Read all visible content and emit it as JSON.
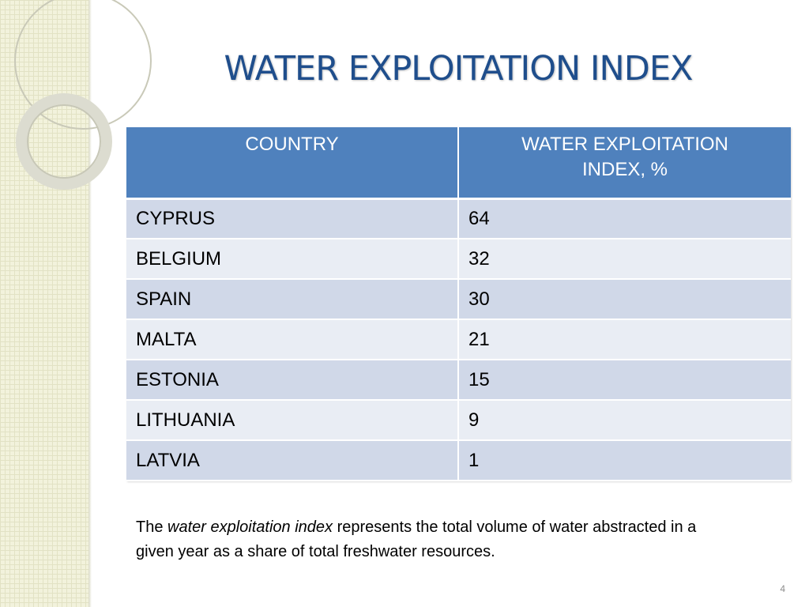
{
  "slide": {
    "title": "WATER EXPLOITATION INDEX",
    "page_number": "4"
  },
  "table": {
    "headers": {
      "country": "COUNTRY",
      "index_line1": "WATER  EXPLOITATION",
      "index_line2": "INDEX, %"
    },
    "rows": [
      {
        "country": "CYPRUS",
        "value": "64"
      },
      {
        "country": "BELGIUM",
        "value": "32"
      },
      {
        "country": "SPAIN",
        "value": "30"
      },
      {
        "country": "MALTA",
        "value": "21"
      },
      {
        "country": "ESTONIA",
        "value": "15"
      },
      {
        "country": "LITHUANIA",
        "value": "9"
      },
      {
        "country": "LATVIA",
        "value": "1"
      }
    ]
  },
  "footnote": {
    "prefix": "The ",
    "term": "water exploitation index",
    "suffix": " represents the total volume of water abstracted in a given year as a share of total freshwater resources."
  },
  "colors": {
    "title": "#1f4e8c",
    "header_bg": "#4f81bd",
    "row_odd": "#d0d8e8",
    "row_even": "#e9edf4",
    "side_panel": "#f2f2dc"
  }
}
